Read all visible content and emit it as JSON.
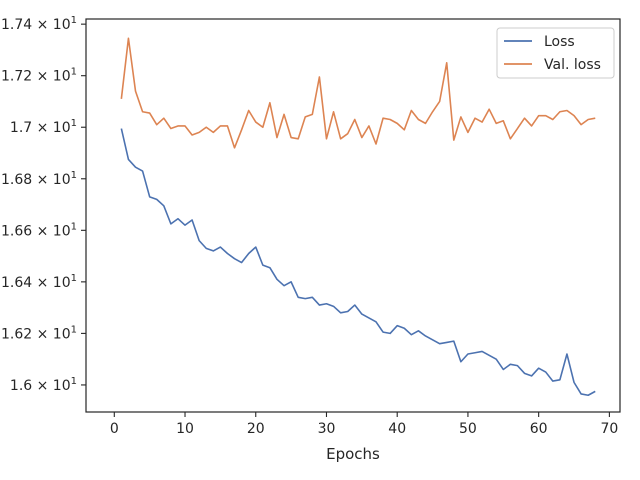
{
  "chart_data": {
    "type": "line",
    "title": "",
    "xlabel": "Epochs",
    "ylabel": "",
    "xlim": [
      -4,
      71.5
    ],
    "ylim": [
      15.895,
      17.42
    ],
    "xticks": [
      0,
      10,
      20,
      30,
      40,
      50,
      60,
      70
    ],
    "yticks": [
      {
        "value": 16.0,
        "mantissa": "1.6",
        "exp": "1"
      },
      {
        "value": 16.2,
        "mantissa": "1.62",
        "exp": "1"
      },
      {
        "value": 16.4,
        "mantissa": "1.64",
        "exp": "1"
      },
      {
        "value": 16.6,
        "mantissa": "1.66",
        "exp": "1"
      },
      {
        "value": 16.8,
        "mantissa": "1.68",
        "exp": "1"
      },
      {
        "value": 17.0,
        "mantissa": "1.7",
        "exp": "1"
      },
      {
        "value": 17.2,
        "mantissa": "1.72",
        "exp": "1"
      },
      {
        "value": 17.4,
        "mantissa": "1.74",
        "exp": "1"
      }
    ],
    "grid": false,
    "legend_position": "top-right",
    "x": [
      1,
      2,
      3,
      4,
      5,
      6,
      7,
      8,
      9,
      10,
      11,
      12,
      13,
      14,
      15,
      16,
      17,
      18,
      19,
      20,
      21,
      22,
      23,
      24,
      25,
      26,
      27,
      28,
      29,
      30,
      31,
      32,
      33,
      34,
      35,
      36,
      37,
      38,
      39,
      40,
      41,
      42,
      43,
      44,
      45,
      46,
      47,
      48,
      49,
      50,
      51,
      52,
      53,
      54,
      55,
      56,
      57,
      58,
      59,
      60,
      61,
      62,
      63,
      64,
      65,
      66,
      67,
      68
    ],
    "series": [
      {
        "name": "Loss",
        "color": "#4c72b0",
        "values": [
          16.995,
          16.875,
          16.845,
          16.83,
          16.73,
          16.72,
          16.695,
          16.625,
          16.645,
          16.62,
          16.64,
          16.56,
          16.53,
          16.52,
          16.535,
          16.51,
          16.49,
          16.475,
          16.51,
          16.535,
          16.465,
          16.455,
          16.41,
          16.385,
          16.4,
          16.34,
          16.335,
          16.34,
          16.31,
          16.315,
          16.305,
          16.28,
          16.285,
          16.31,
          16.275,
          16.26,
          16.245,
          16.205,
          16.2,
          16.23,
          16.22,
          16.195,
          16.21,
          16.19,
          16.175,
          16.16,
          16.165,
          16.17,
          16.09,
          16.12,
          16.125,
          16.13,
          16.115,
          16.1,
          16.06,
          16.08,
          16.075,
          16.045,
          16.035,
          16.065,
          16.05,
          16.015,
          16.02,
          16.12,
          16.01,
          15.965,
          15.96,
          15.975
        ]
      },
      {
        "name": "Val. loss",
        "color": "#dd8452",
        "values": [
          17.11,
          17.345,
          17.14,
          17.06,
          17.055,
          17.01,
          17.035,
          16.995,
          17.005,
          17.005,
          16.97,
          16.98,
          17.0,
          16.98,
          17.005,
          17.005,
          16.92,
          16.99,
          17.065,
          17.02,
          17.0,
          17.095,
          16.96,
          17.05,
          16.96,
          16.955,
          17.04,
          17.05,
          17.195,
          16.955,
          17.06,
          16.955,
          16.975,
          17.03,
          16.96,
          17.005,
          16.935,
          17.035,
          17.03,
          17.015,
          16.99,
          17.065,
          17.03,
          17.015,
          17.06,
          17.1,
          17.25,
          16.95,
          17.04,
          16.98,
          17.035,
          17.02,
          17.07,
          17.015,
          17.025,
          16.955,
          16.995,
          17.035,
          17.005,
          17.045,
          17.045,
          17.03,
          17.06,
          17.065,
          17.045,
          17.01,
          17.03,
          17.035
        ]
      }
    ]
  }
}
